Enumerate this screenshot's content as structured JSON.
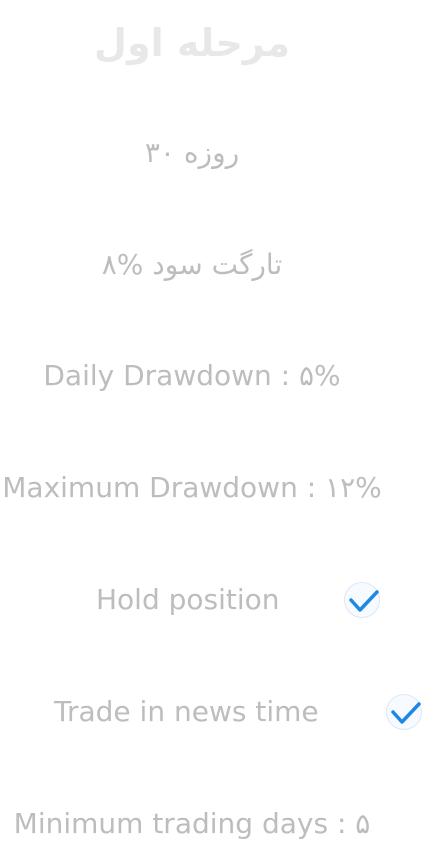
{
  "title": "مرحله اول",
  "rules": {
    "duration": "۳۰ روزه",
    "profit_target": "۸% تارگت سود",
    "daily_drawdown": "Daily Drawdown : ۵%",
    "max_drawdown": "Maximum Drawdown : ۱۲%",
    "hold_position": {
      "label": "Hold position",
      "checked": true
    },
    "news_trading": {
      "label": "Trade in news time",
      "checked": true
    },
    "min_trading_days": "Minimum trading days : ۵"
  },
  "icons": {
    "check": "check-icon"
  },
  "colors": {
    "title": "#e8e8e8",
    "text": "#bdbdbd",
    "check": "#1e88e5"
  }
}
